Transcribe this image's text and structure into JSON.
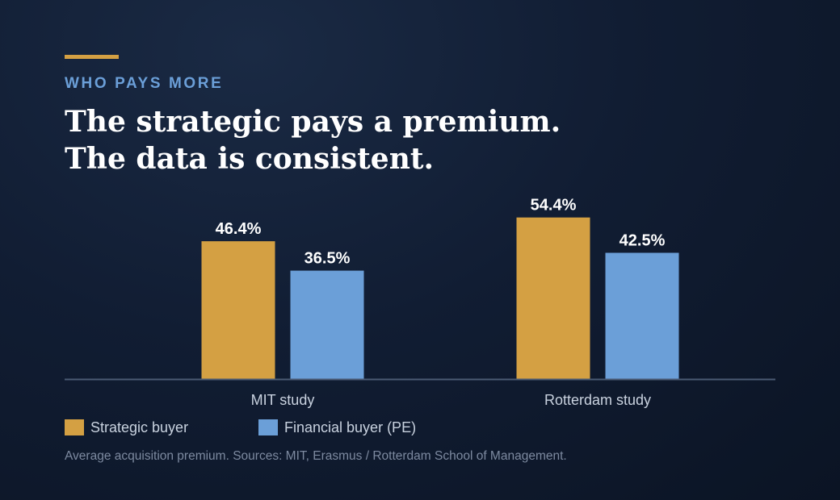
{
  "eyebrow": "WHO PAYS MORE",
  "headline": {
    "line1": "The strategic pays a premium.",
    "line2": "The data is consistent."
  },
  "colors": {
    "accent_rule": "#d4a043",
    "eyebrow": "#6b9fd8",
    "strategic": "#d4a043",
    "financial": "#6b9fd8",
    "baseline": "#4a5a73"
  },
  "chart_data": {
    "type": "bar",
    "categories": [
      "MIT study",
      "Rotterdam study"
    ],
    "series": [
      {
        "name": "Strategic buyer",
        "values": [
          46.4,
          54.4
        ],
        "labels": [
          "46.4%",
          "54.4%"
        ],
        "color": "#d4a043"
      },
      {
        "name": "Financial buyer (PE)",
        "values": [
          36.5,
          42.5
        ],
        "labels": [
          "36.5%",
          "42.5%"
        ],
        "color": "#6b9fd8"
      }
    ],
    "unit": "%",
    "ylim": [
      0,
      63
    ],
    "grid": false,
    "legend_position": "bottom-left"
  },
  "footnote": "Average acquisition premium. Sources: MIT, Erasmus / Rotterdam School of Management."
}
